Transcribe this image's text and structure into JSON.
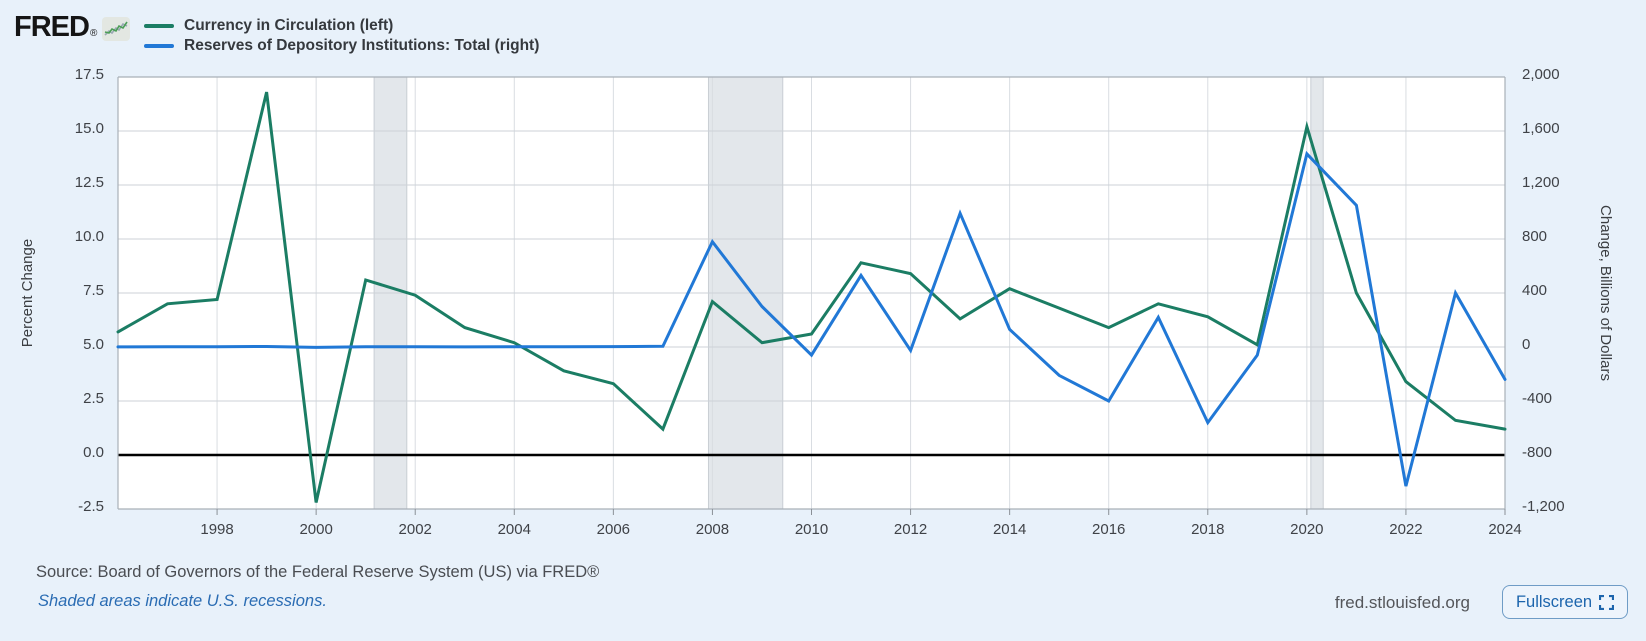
{
  "header": {
    "logo_text": "FRED",
    "registered_mark": "®",
    "logo_chart_icon": "sparkline-icon"
  },
  "chart_data": {
    "type": "line",
    "x": [
      1996,
      1997,
      1998,
      1999,
      2000,
      2001,
      2002,
      2003,
      2004,
      2005,
      2006,
      2007,
      2008,
      2009,
      2010,
      2011,
      2012,
      2013,
      2014,
      2015,
      2016,
      2017,
      2018,
      2019,
      2020,
      2021,
      2022,
      2023,
      2024
    ],
    "series": [
      {
        "name": "Currency in Circulation (left)",
        "axis": "left",
        "color": "#1b7d64",
        "values": [
          5.7,
          7.0,
          7.2,
          16.8,
          -2.2,
          8.1,
          7.4,
          5.9,
          5.2,
          3.9,
          3.3,
          1.2,
          7.1,
          5.2,
          5.6,
          8.9,
          8.4,
          6.3,
          7.7,
          6.8,
          5.9,
          7.0,
          6.4,
          5.1,
          15.2,
          7.5,
          3.4,
          1.6,
          1.2
        ]
      },
      {
        "name": "Reserves of Depository Institutions: Total (right)",
        "axis": "right",
        "color": "#2178d6",
        "values": [
          1,
          2,
          2,
          4,
          -3,
          2,
          2,
          1,
          2,
          2,
          3,
          5,
          780,
          300,
          -60,
          530,
          -25,
          990,
          130,
          -210,
          -400,
          220,
          -560,
          -60,
          1430,
          1050,
          -1030,
          400,
          -240
        ]
      }
    ],
    "left_axis": {
      "title": "Percent Change",
      "range": [
        -2.5,
        17.5
      ],
      "tick_values": [
        17.5,
        15.0,
        12.5,
        10.0,
        7.5,
        5.0,
        2.5,
        0.0,
        -2.5
      ],
      "tick_labels": [
        "17.5",
        "15.0",
        "12.5",
        "10.0",
        "7.5",
        "5.0",
        "2.5",
        "0.0",
        "-2.5"
      ]
    },
    "right_axis": {
      "title": "Change, Billions of Dollars",
      "range": [
        -1200,
        2000
      ],
      "tick_values": [
        2000,
        1600,
        1200,
        800,
        400,
        0,
        -400,
        -800,
        -1200
      ],
      "tick_labels": [
        "2,000",
        "1,600",
        "1,200",
        "800",
        "400",
        "0",
        "-400",
        "-800",
        "-1,200"
      ]
    },
    "x_axis": {
      "range": [
        1996,
        2024
      ],
      "tick_values": [
        1998,
        2000,
        2002,
        2004,
        2006,
        2008,
        2010,
        2012,
        2014,
        2016,
        2018,
        2020,
        2022,
        2024
      ],
      "tick_labels": [
        "1998",
        "2000",
        "2002",
        "2004",
        "2006",
        "2008",
        "2010",
        "2012",
        "2014",
        "2016",
        "2018",
        "2020",
        "2022",
        "2024"
      ]
    },
    "zero_line_value": 0,
    "recessions": [
      [
        2001.17,
        2001.83
      ],
      [
        2007.92,
        2009.42
      ],
      [
        2020.08,
        2020.33
      ]
    ],
    "grid": true,
    "legend_position": "top-left",
    "colors": {
      "background": "#e8f1fa",
      "plot_background": "#ffffff",
      "gridline": "#cdd2d7",
      "vertical_gridline": "#d9dde2",
      "border": "#a9b0b8",
      "zero_line": "#000000",
      "recession_band": "#e3e7eb",
      "recession_band_edge": "#c9ced4"
    }
  },
  "footer": {
    "source_text": "Source: Board of Governors of the Federal Reserve System (US) via FRED®",
    "recession_note": "Shaded areas indicate U.S. recessions.",
    "site_text": "fred.stlouisfed.org",
    "fullscreen_label": "Fullscreen",
    "fullscreen_icon": "fullscreen-corners-icon"
  }
}
